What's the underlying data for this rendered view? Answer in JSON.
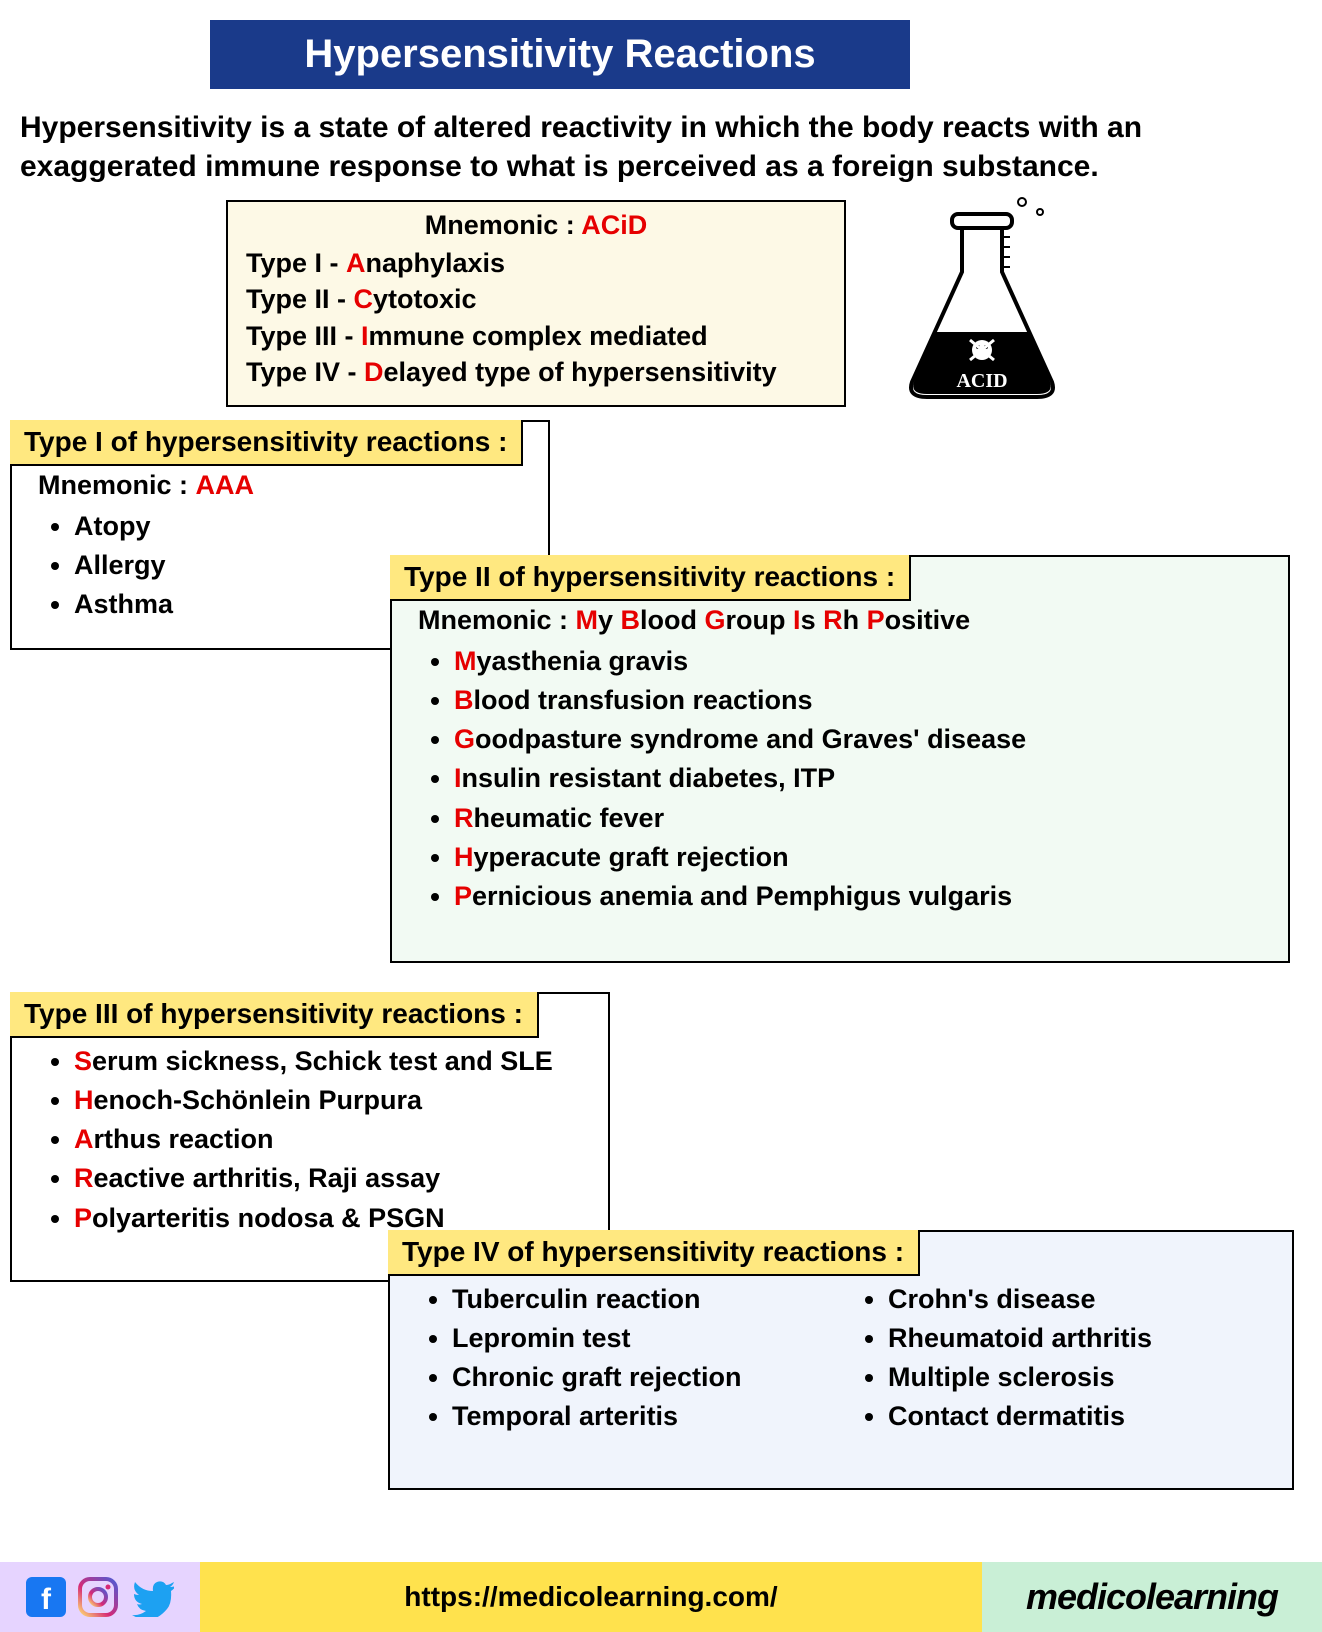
{
  "title": {
    "text": "Hypersensitivity Reactions",
    "bg": "#1a3a8a",
    "color": "#ffffff"
  },
  "intro": "Hypersensitivity is a state of altered reactivity in which the body reacts with an exaggerated immune response to what is perceived as a foreign substance.",
  "mnemonic": {
    "label": "Mnemonic : ",
    "word": "ACiD",
    "bg": "#fdf9e6",
    "lines": [
      {
        "prefix": "Type I - ",
        "letter": "A",
        "rest": "naphylaxis"
      },
      {
        "prefix": "Type II - ",
        "letter": "C",
        "rest": "ytotoxic"
      },
      {
        "prefix": "Type III - ",
        "letter": "I",
        "rest": "mmune complex mediated"
      },
      {
        "prefix": "Type IV - ",
        "letter": "D",
        "rest": "elayed type of hypersensitivity"
      }
    ]
  },
  "red": "#e60000",
  "sections": {
    "type1": {
      "label": "Type I of hypersensitivity reactions :",
      "mnemonic_prefix": "Mnemonic : ",
      "mnemonic_word": "AAA",
      "items": [
        {
          "letter": "",
          "rest": "Atopy"
        },
        {
          "letter": "",
          "rest": "Allergy"
        },
        {
          "letter": "",
          "rest": "Asthma"
        }
      ]
    },
    "type2": {
      "label": "Type II of hypersensitivity reactions :",
      "mnemonic_prefix": "Mnemonic : ",
      "mnemonic_parts": [
        {
          "l": "M",
          "r": "y "
        },
        {
          "l": "B",
          "r": "lood "
        },
        {
          "l": "G",
          "r": "roup "
        },
        {
          "l": "I",
          "r": "s "
        },
        {
          "l": "R",
          "r": "h "
        },
        {
          "l": "P",
          "r": "ositive"
        }
      ],
      "items": [
        {
          "letter": "M",
          "rest": "yasthenia gravis"
        },
        {
          "letter": "B",
          "rest": "lood transfusion reactions"
        },
        {
          "letter": "G",
          "rest": "oodpasture syndrome and Graves' disease"
        },
        {
          "letter": "I",
          "rest": "nsulin resistant diabetes, ITP"
        },
        {
          "letter": "R",
          "rest": "heumatic fever"
        },
        {
          "letter": "H",
          "rest": "yperacute graft rejection"
        },
        {
          "letter": "P",
          "rest": "ernicious anemia and Pemphigus vulgaris"
        }
      ]
    },
    "type3": {
      "label": "Type III of hypersensitivity reactions :",
      "items": [
        {
          "letter": "S",
          "rest": "erum sickness, Schick test and SLE"
        },
        {
          "letter": "H",
          "rest": "enoch-Schönlein Purpura"
        },
        {
          "letter": "A",
          "rest": "rthus reaction"
        },
        {
          "letter": "R",
          "rest": "eactive arthritis, Raji assay"
        },
        {
          "letter": "P",
          "rest": "olyarteritis nodosa  & PSGN"
        }
      ]
    },
    "type4": {
      "label": "Type IV of hypersensitivity reactions :",
      "col1": [
        "Tuberculin reaction",
        "Lepromin test",
        "Chronic graft rejection",
        "Temporal arteritis"
      ],
      "col2": [
        "Crohn's disease",
        "Rheumatoid arthritis",
        "Multiple sclerosis",
        "Contact dermatitis"
      ]
    }
  },
  "footer": {
    "url": "https://medicolearning.com/",
    "brand": "medicolearning",
    "social": [
      "facebook",
      "instagram",
      "twitter"
    ]
  },
  "flask_label": "ACID"
}
